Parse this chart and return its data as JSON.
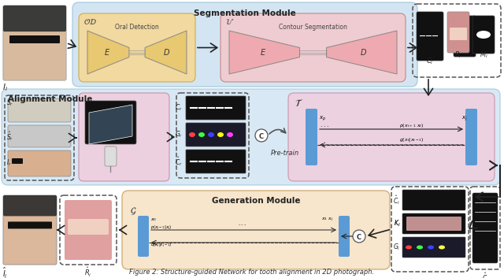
{
  "bg_color": "#ffffff",
  "seg_module_bg": "#c8dff0",
  "seg_module_title": "Segmentation Module",
  "od_box_bg": "#f5d897",
  "od_box_label": "Oral Detection",
  "cs_box_bg": "#f5c8cc",
  "cs_box_label": "Contour Segmentation",
  "align_module_bg": "#c8dff0",
  "align_module_title": "Alignment Module",
  "align_pink_bg": "#f5c8d8",
  "gen_module_bg": "#f5dfc0",
  "gen_module_title": "Generation Module",
  "gen_pink_bg": "#f5c8d8",
  "T_pink_bg": "#f5c8d8",
  "encoder_color": "#5b9bd5",
  "caption": "Figure 2: Structure-guided Network for tooth alignment in 2D photograph."
}
